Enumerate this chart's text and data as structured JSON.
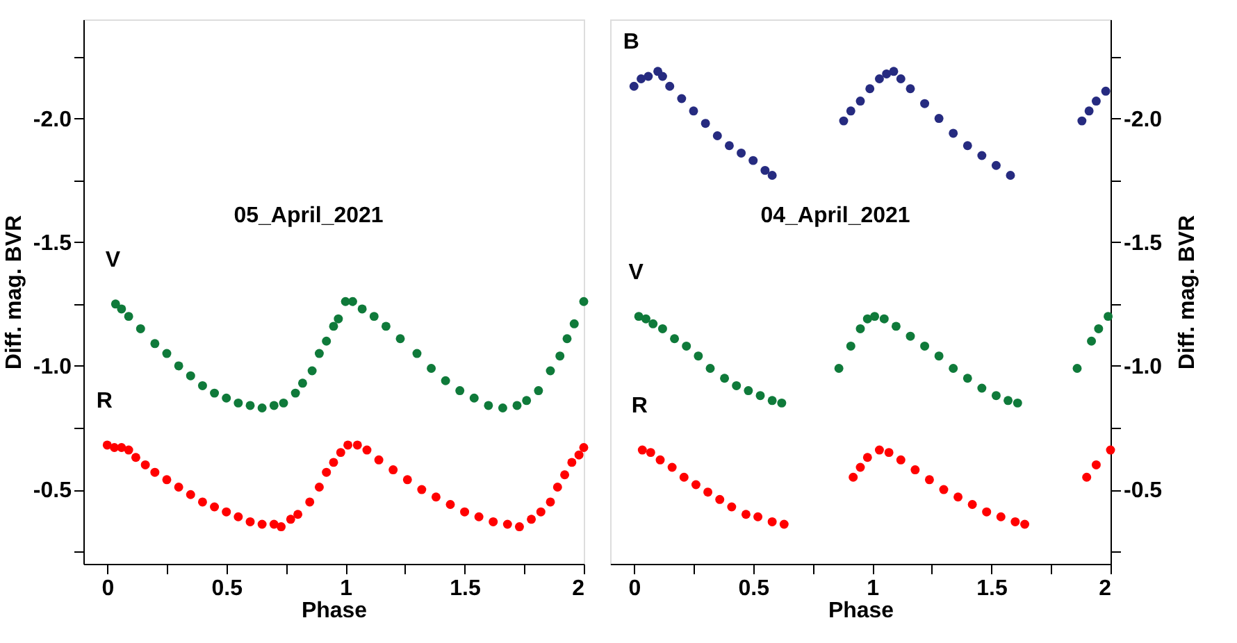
{
  "chart_data": [
    {
      "type": "scatter",
      "title": "05_April_2021",
      "xlabel": "Phase",
      "ylabel": "Diff. mag. BVR",
      "xlim": [
        -0.1,
        2
      ],
      "ylim": [
        -0.2,
        -2.4
      ],
      "xticks": [
        0,
        {
          "value": 0.25,
          "label": null
        },
        0.5,
        {
          "value": 0.75,
          "label": null
        },
        1,
        {
          "value": 1.25,
          "label": null
        },
        1.5,
        {
          "value": 1.75,
          "label": null
        },
        2
      ],
      "yticks": [
        {
          "value": -0.25,
          "label": null
        },
        {
          "value": -0.5,
          "label": "-0.5"
        },
        {
          "value": -0.75,
          "label": null
        },
        {
          "value": -1.0,
          "label": "-1.0"
        },
        {
          "value": -1.25,
          "label": null
        },
        {
          "value": -1.5,
          "label": "-1.5"
        },
        {
          "value": -1.75,
          "label": null
        },
        {
          "value": -2.0,
          "label": "-2.0"
        },
        {
          "value": -2.25,
          "label": null
        }
      ],
      "marker": "circle",
      "grid": false,
      "legend": false,
      "series": [
        {
          "name": "V",
          "color": "#0f7a3a",
          "x": [
            0.035,
            0.06,
            0.09,
            0.14,
            0.2,
            0.25,
            0.3,
            0.35,
            0.4,
            0.45,
            0.5,
            0.55,
            0.6,
            0.65,
            0.7,
            0.74,
            0.79,
            0.82,
            0.86,
            0.89,
            0.92,
            0.95,
            0.97,
            1.0,
            1.03,
            1.07,
            1.12,
            1.17,
            1.23,
            1.3,
            1.36,
            1.42,
            1.48,
            1.54,
            1.6,
            1.66,
            1.72,
            1.76,
            1.81,
            1.86,
            1.9,
            1.93,
            1.96,
            2.0
          ],
          "values": [
            -1.25,
            -1.23,
            -1.2,
            -1.15,
            -1.09,
            -1.05,
            -1.0,
            -0.96,
            -0.92,
            -0.89,
            -0.87,
            -0.85,
            -0.84,
            -0.83,
            -0.84,
            -0.85,
            -0.89,
            -0.93,
            -0.98,
            -1.05,
            -1.1,
            -1.16,
            -1.19,
            -1.26,
            -1.26,
            -1.23,
            -1.2,
            -1.16,
            -1.11,
            -1.05,
            -0.99,
            -0.94,
            -0.9,
            -0.87,
            -0.84,
            -0.83,
            -0.84,
            -0.86,
            -0.9,
            -0.98,
            -1.04,
            -1.11,
            -1.17,
            -1.26
          ]
        },
        {
          "name": "R",
          "color": "#ff0000",
          "x": [
            0.0,
            0.03,
            0.06,
            0.09,
            0.12,
            0.16,
            0.2,
            0.25,
            0.3,
            0.35,
            0.4,
            0.45,
            0.5,
            0.55,
            0.6,
            0.65,
            0.7,
            0.73,
            0.77,
            0.8,
            0.85,
            0.89,
            0.92,
            0.95,
            0.98,
            1.01,
            1.05,
            1.09,
            1.14,
            1.2,
            1.26,
            1.32,
            1.38,
            1.44,
            1.5,
            1.56,
            1.62,
            1.68,
            1.73,
            1.78,
            1.82,
            1.86,
            1.89,
            1.92,
            1.95,
            1.98,
            2.0
          ],
          "values": [
            -0.68,
            -0.67,
            -0.67,
            -0.66,
            -0.63,
            -0.6,
            -0.57,
            -0.54,
            -0.51,
            -0.48,
            -0.45,
            -0.43,
            -0.41,
            -0.39,
            -0.37,
            -0.36,
            -0.36,
            -0.35,
            -0.38,
            -0.4,
            -0.45,
            -0.51,
            -0.57,
            -0.61,
            -0.65,
            -0.68,
            -0.68,
            -0.66,
            -0.62,
            -0.58,
            -0.54,
            -0.5,
            -0.47,
            -0.44,
            -0.41,
            -0.39,
            -0.37,
            -0.36,
            -0.35,
            -0.38,
            -0.41,
            -0.45,
            -0.51,
            -0.56,
            -0.61,
            -0.64,
            -0.67
          ]
        }
      ]
    },
    {
      "type": "scatter",
      "title": "04_April_2021",
      "xlabel": "Phase",
      "ylabel": "Diff. mag. BVR",
      "xlim": [
        -0.1,
        2
      ],
      "ylim": [
        -0.2,
        -2.4
      ],
      "xticks": [
        0,
        {
          "value": 0.25,
          "label": null
        },
        0.5,
        {
          "value": 0.75,
          "label": null
        },
        1,
        {
          "value": 1.25,
          "label": null
        },
        1.5,
        {
          "value": 1.75,
          "label": null
        },
        2
      ],
      "yticks": [
        {
          "value": -0.25,
          "label": null
        },
        {
          "value": -0.5,
          "label": "-0.5"
        },
        {
          "value": -0.75,
          "label": null
        },
        {
          "value": -1.0,
          "label": "-1.0"
        },
        {
          "value": -1.25,
          "label": null
        },
        {
          "value": -1.5,
          "label": "-1.5"
        },
        {
          "value": -1.75,
          "label": null
        },
        {
          "value": -2.0,
          "label": "-2.0"
        },
        {
          "value": -2.25,
          "label": null
        }
      ],
      "marker": "circle",
      "grid": false,
      "legend": false,
      "series": [
        {
          "name": "B",
          "color": "#262b80",
          "x": [
            0.0,
            0.03,
            0.06,
            0.1,
            0.12,
            0.15,
            0.2,
            0.25,
            0.3,
            0.35,
            0.4,
            0.45,
            0.5,
            0.55,
            0.58,
            0.88,
            0.91,
            0.95,
            0.99,
            1.03,
            1.06,
            1.09,
            1.12,
            1.16,
            1.22,
            1.28,
            1.34,
            1.4,
            1.46,
            1.52,
            1.58,
            1.88,
            1.91,
            1.94,
            1.98
          ],
          "values": [
            -2.13,
            -2.16,
            -2.17,
            -2.19,
            -2.17,
            -2.13,
            -2.08,
            -2.03,
            -1.98,
            -1.93,
            -1.89,
            -1.86,
            -1.83,
            -1.79,
            -1.77,
            -1.99,
            -2.03,
            -2.07,
            -2.12,
            -2.16,
            -2.18,
            -2.19,
            -2.16,
            -2.12,
            -2.06,
            -2.0,
            -1.94,
            -1.89,
            -1.85,
            -1.81,
            -1.77,
            -1.99,
            -2.03,
            -2.07,
            -2.11
          ]
        },
        {
          "name": "V",
          "color": "#0f7a3a",
          "x": [
            0.02,
            0.05,
            0.08,
            0.12,
            0.17,
            0.22,
            0.27,
            0.32,
            0.38,
            0.43,
            0.48,
            0.53,
            0.58,
            0.62,
            0.86,
            0.91,
            0.95,
            0.98,
            1.01,
            1.05,
            1.1,
            1.16,
            1.22,
            1.28,
            1.34,
            1.4,
            1.46,
            1.52,
            1.57,
            1.61,
            1.86,
            1.92,
            1.95,
            1.99
          ],
          "values": [
            -1.2,
            -1.19,
            -1.17,
            -1.15,
            -1.11,
            -1.08,
            -1.04,
            -0.99,
            -0.95,
            -0.92,
            -0.9,
            -0.88,
            -0.86,
            -0.85,
            -0.99,
            -1.08,
            -1.15,
            -1.19,
            -1.2,
            -1.19,
            -1.16,
            -1.12,
            -1.08,
            -1.04,
            -0.99,
            -0.95,
            -0.91,
            -0.88,
            -0.86,
            -0.85,
            -0.99,
            -1.1,
            -1.15,
            -1.2
          ]
        },
        {
          "name": "R",
          "color": "#ff0000",
          "x": [
            0.035,
            0.07,
            0.11,
            0.16,
            0.21,
            0.26,
            0.31,
            0.36,
            0.41,
            0.47,
            0.52,
            0.58,
            0.63,
            0.92,
            0.95,
            0.98,
            1.03,
            1.07,
            1.12,
            1.18,
            1.24,
            1.3,
            1.36,
            1.42,
            1.48,
            1.54,
            1.6,
            1.64,
            1.9,
            1.94,
            2.0
          ],
          "values": [
            -0.66,
            -0.65,
            -0.62,
            -0.59,
            -0.55,
            -0.52,
            -0.49,
            -0.46,
            -0.43,
            -0.4,
            -0.39,
            -0.37,
            -0.36,
            -0.55,
            -0.59,
            -0.63,
            -0.66,
            -0.65,
            -0.62,
            -0.58,
            -0.54,
            -0.5,
            -0.47,
            -0.44,
            -0.41,
            -0.39,
            -0.37,
            -0.36,
            -0.55,
            -0.6,
            -0.66
          ]
        }
      ]
    }
  ]
}
